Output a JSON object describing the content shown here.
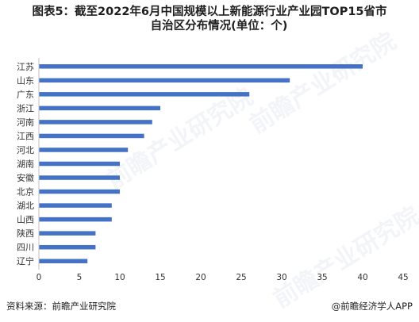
{
  "title_line1": "图表5：截至2022年6月中国规模以上新能源行业产业园TOP15省市",
  "title_line2": "自治区分布情况(单位：个)",
  "source": "资料来源：前瞻产业研究院",
  "brand": "@前瞻经济学人APP",
  "watermark": "前瞻产业研究院",
  "bar_color": "#4472C4",
  "chart_data": {
    "type": "bar",
    "orientation": "horizontal",
    "title": "图表5：截至2022年6月中国规模以上新能源行业产业园TOP15省市自治区分布情况(单位：个)",
    "categories": [
      "江苏",
      "山东",
      "广东",
      "浙江",
      "河南",
      "江西",
      "河北",
      "湖南",
      "安徽",
      "北京",
      "湖北",
      "山西",
      "陕西",
      "四川",
      "辽宁"
    ],
    "values": [
      40,
      31,
      26,
      15,
      14,
      13,
      11,
      10,
      10,
      10,
      9,
      9,
      7,
      7,
      6
    ],
    "xlim": [
      0,
      45
    ],
    "xticks": [
      "0",
      "5",
      "10",
      "15",
      "20",
      "25",
      "30",
      "35",
      "40",
      "45"
    ],
    "grid": false,
    "legend": false
  }
}
